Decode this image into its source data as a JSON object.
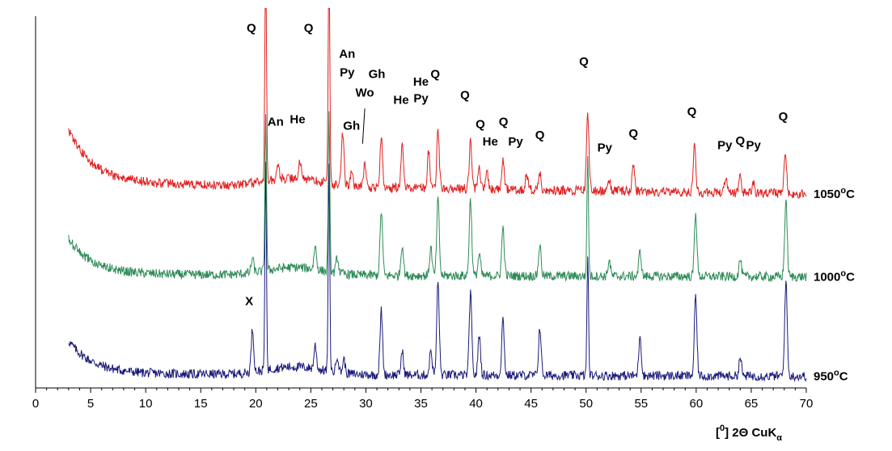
{
  "chart_data": {
    "type": "line",
    "title": "",
    "xlabel": "[°] 2Θ CuKα",
    "xlabel_parts": {
      "bracket_open": "[",
      "degree": "0",
      "rest": "] 2Θ CuK",
      "sub": "α"
    },
    "ylabel": "",
    "xlim": [
      0,
      70
    ],
    "x_ticks": [
      0,
      5,
      10,
      15,
      20,
      25,
      30,
      35,
      40,
      45,
      50,
      55,
      60,
      65,
      70
    ],
    "x_minor_tick_step": 1,
    "y_axis_shown": true,
    "y_ticks_labeled": false,
    "grid": false,
    "colors": {
      "s950": "#1a1a7a",
      "s1000": "#2e8b57",
      "s1050": "#e02020",
      "axis": "#000000"
    },
    "series": [
      {
        "name": "950°C",
        "label_parts": {
          "num": "950",
          "unit": "C"
        },
        "color": "#1a1a7a",
        "baseline_start": 0.6,
        "baseline_min": 0.18,
        "baseline_end": 0.15,
        "peaks": [
          {
            "x": 19.7,
            "h": 0.55
          },
          {
            "x": 20.9,
            "h": 2.6
          },
          {
            "x": 25.4,
            "h": 0.3
          },
          {
            "x": 26.65,
            "h": 2.6
          },
          {
            "x": 27.4,
            "h": 0.22
          },
          {
            "x": 28.0,
            "h": 0.18
          },
          {
            "x": 31.4,
            "h": 0.82
          },
          {
            "x": 33.3,
            "h": 0.3
          },
          {
            "x": 35.9,
            "h": 0.32
          },
          {
            "x": 36.55,
            "h": 1.2
          },
          {
            "x": 39.5,
            "h": 1.05
          },
          {
            "x": 40.3,
            "h": 0.52
          },
          {
            "x": 42.45,
            "h": 0.72
          },
          {
            "x": 45.8,
            "h": 0.62
          },
          {
            "x": 50.15,
            "h": 1.55
          },
          {
            "x": 54.9,
            "h": 0.52
          },
          {
            "x": 59.95,
            "h": 1.02
          },
          {
            "x": 64.0,
            "h": 0.24
          },
          {
            "x": 68.15,
            "h": 1.22
          }
        ]
      },
      {
        "name": "1000°C",
        "label_parts": {
          "num": "1000",
          "unit": "C"
        },
        "color": "#2e8b57",
        "baseline_start": 1.9,
        "baseline_min": 1.45,
        "baseline_end": 1.42,
        "peaks": [
          {
            "x": 19.7,
            "h": 0.18
          },
          {
            "x": 20.9,
            "h": 2.0
          },
          {
            "x": 25.4,
            "h": 0.3
          },
          {
            "x": 26.65,
            "h": 2.0
          },
          {
            "x": 27.4,
            "h": 0.2
          },
          {
            "x": 31.4,
            "h": 0.82
          },
          {
            "x": 33.3,
            "h": 0.4
          },
          {
            "x": 35.9,
            "h": 0.36
          },
          {
            "x": 36.55,
            "h": 0.98
          },
          {
            "x": 39.5,
            "h": 0.98
          },
          {
            "x": 40.3,
            "h": 0.28
          },
          {
            "x": 42.45,
            "h": 0.62
          },
          {
            "x": 45.8,
            "h": 0.4
          },
          {
            "x": 50.15,
            "h": 1.55
          },
          {
            "x": 52.1,
            "h": 0.2
          },
          {
            "x": 54.9,
            "h": 0.32
          },
          {
            "x": 59.95,
            "h": 0.82
          },
          {
            "x": 64.0,
            "h": 0.22
          },
          {
            "x": 68.15,
            "h": 0.98
          }
        ]
      },
      {
        "name": "1050°C",
        "label_parts": {
          "num": "1050",
          "unit": "C"
        },
        "color": "#e02020",
        "baseline_start": 3.3,
        "baseline_min": 2.62,
        "baseline_end": 2.48,
        "peaks": [
          {
            "x": 20.9,
            "h": 3.2
          },
          {
            "x": 22.0,
            "h": 0.22
          },
          {
            "x": 24.0,
            "h": 0.25
          },
          {
            "x": 26.65,
            "h": 3.2
          },
          {
            "x": 27.9,
            "h": 0.68
          },
          {
            "x": 28.7,
            "h": 0.2
          },
          {
            "x": 29.9,
            "h": 0.3
          },
          {
            "x": 31.4,
            "h": 0.68
          },
          {
            "x": 33.3,
            "h": 0.55
          },
          {
            "x": 35.7,
            "h": 0.48
          },
          {
            "x": 36.55,
            "h": 0.75
          },
          {
            "x": 39.5,
            "h": 0.6
          },
          {
            "x": 40.3,
            "h": 0.25
          },
          {
            "x": 41.0,
            "h": 0.22
          },
          {
            "x": 42.45,
            "h": 0.35
          },
          {
            "x": 44.6,
            "h": 0.2
          },
          {
            "x": 45.8,
            "h": 0.22
          },
          {
            "x": 50.15,
            "h": 0.98
          },
          {
            "x": 52.1,
            "h": 0.14
          },
          {
            "x": 54.3,
            "h": 0.32
          },
          {
            "x": 59.85,
            "h": 0.58
          },
          {
            "x": 62.7,
            "h": 0.18
          },
          {
            "x": 64.0,
            "h": 0.2
          },
          {
            "x": 65.2,
            "h": 0.12
          },
          {
            "x": 68.1,
            "h": 0.52
          }
        ]
      }
    ],
    "ylim": [
      0,
      4.75
    ],
    "annotations": [
      {
        "text": "Q",
        "x": 19.6,
        "y": 4.55
      },
      {
        "text": "Q",
        "x": 24.8,
        "y": 4.55
      },
      {
        "text": "An",
        "x": 28.3,
        "y": 4.22
      },
      {
        "text": "Py",
        "x": 28.3,
        "y": 3.98
      },
      {
        "text": "Gh",
        "x": 31.0,
        "y": 3.96
      },
      {
        "text": "He",
        "x": 35.0,
        "y": 3.86
      },
      {
        "text": "Q",
        "x": 36.3,
        "y": 3.96
      },
      {
        "text": "Py",
        "x": 35.0,
        "y": 3.65
      },
      {
        "text": "Wo",
        "x": 29.9,
        "y": 3.72
      },
      {
        "text": "He",
        "x": 33.2,
        "y": 3.63
      },
      {
        "text": "An",
        "x": 21.8,
        "y": 3.35
      },
      {
        "text": "He",
        "x": 23.8,
        "y": 3.38
      },
      {
        "text": "Gh",
        "x": 28.7,
        "y": 3.3
      },
      {
        "text": "Q",
        "x": 39.0,
        "y": 3.69
      },
      {
        "text": "Q",
        "x": 40.4,
        "y": 3.32
      },
      {
        "text": "He",
        "x": 41.3,
        "y": 3.1
      },
      {
        "text": "Q",
        "x": 42.5,
        "y": 3.35
      },
      {
        "text": "Py",
        "x": 43.6,
        "y": 3.1
      },
      {
        "text": "Q",
        "x": 45.8,
        "y": 3.18
      },
      {
        "text": "Q",
        "x": 49.8,
        "y": 4.12
      },
      {
        "text": "Py",
        "x": 51.7,
        "y": 3.02
      },
      {
        "text": "Q",
        "x": 54.3,
        "y": 3.2
      },
      {
        "text": "Q",
        "x": 59.6,
        "y": 3.48
      },
      {
        "text": "Py",
        "x": 62.6,
        "y": 3.05
      },
      {
        "text": "Q",
        "x": 64.0,
        "y": 3.11
      },
      {
        "text": "Py",
        "x": 65.2,
        "y": 3.05
      },
      {
        "text": "Q",
        "x": 67.9,
        "y": 3.42
      },
      {
        "text": "X",
        "x": 19.4,
        "y": 1.06
      }
    ],
    "leader_line": {
      "from": [
        29.9,
        3.57
      ],
      "to": [
        29.7,
        3.12
      ]
    }
  }
}
